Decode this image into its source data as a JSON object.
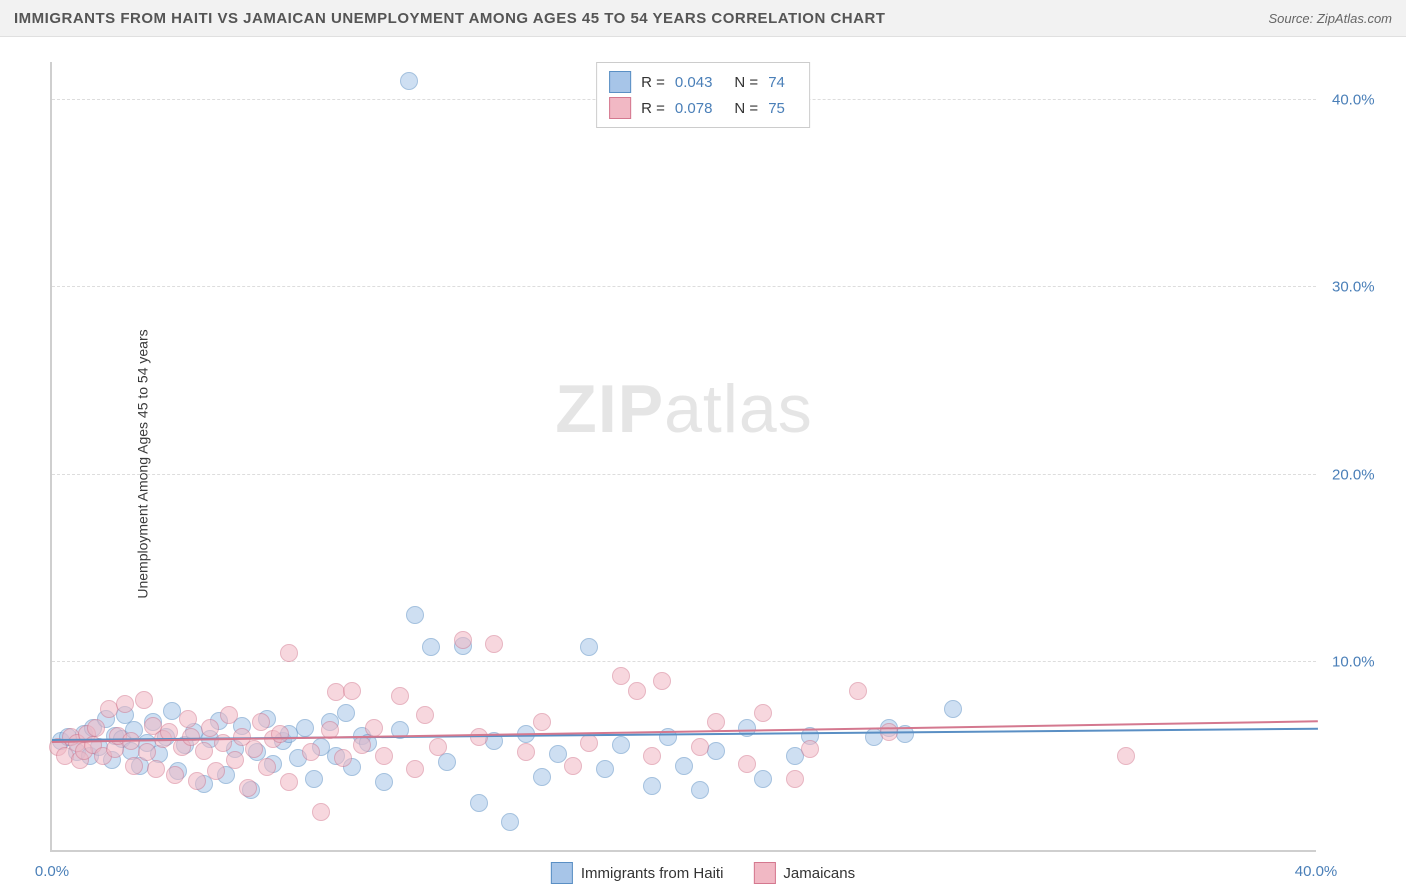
{
  "title": "IMMIGRANTS FROM HAITI VS JAMAICAN UNEMPLOYMENT AMONG AGES 45 TO 54 YEARS CORRELATION CHART",
  "source": "Source: ZipAtlas.com",
  "watermark_bold": "ZIP",
  "watermark_light": "atlas",
  "y_axis_label": "Unemployment Among Ages 45 to 54 years",
  "chart": {
    "type": "scatter",
    "xlim": [
      0,
      40
    ],
    "ylim": [
      0,
      42
    ],
    "x_ticks": [
      {
        "v": 0.0,
        "label": "0.0%"
      },
      {
        "v": 40.0,
        "label": "40.0%"
      }
    ],
    "y_ticks": [
      {
        "v": 10.0,
        "label": "10.0%"
      },
      {
        "v": 20.0,
        "label": "20.0%"
      },
      {
        "v": 30.0,
        "label": "30.0%"
      },
      {
        "v": 40.0,
        "label": "40.0%"
      }
    ],
    "grid_color": "#dddddd",
    "axis_color": "#cfcfcf",
    "background_color": "#ffffff",
    "point_radius": 9,
    "point_opacity": 0.55,
    "point_border_width": 1,
    "series": [
      {
        "name": "Immigrants from Haiti",
        "color_fill": "#a7c5e8",
        "color_border": "#5a8fc4",
        "r_value": "0.043",
        "n_value": "74",
        "trend": {
          "y_at_x0": 6.0,
          "y_at_xmax": 6.6,
          "color": "#5a8fc4"
        },
        "points": [
          [
            0.3,
            5.8
          ],
          [
            0.5,
            6.0
          ],
          [
            0.8,
            5.2
          ],
          [
            1.0,
            6.2
          ],
          [
            1.2,
            5.0
          ],
          [
            1.3,
            6.5
          ],
          [
            1.5,
            5.5
          ],
          [
            1.7,
            7.0
          ],
          [
            1.9,
            4.8
          ],
          [
            2.0,
            6.1
          ],
          [
            2.2,
            5.9
          ],
          [
            2.3,
            7.2
          ],
          [
            2.5,
            5.3
          ],
          [
            2.6,
            6.4
          ],
          [
            2.8,
            4.5
          ],
          [
            3.0,
            5.7
          ],
          [
            3.2,
            6.8
          ],
          [
            3.4,
            5.1
          ],
          [
            3.6,
            6.0
          ],
          [
            3.8,
            7.4
          ],
          [
            4.0,
            4.2
          ],
          [
            4.2,
            5.6
          ],
          [
            4.5,
            6.3
          ],
          [
            4.8,
            3.5
          ],
          [
            5.0,
            5.9
          ],
          [
            5.3,
            6.9
          ],
          [
            5.5,
            4.0
          ],
          [
            5.8,
            5.4
          ],
          [
            6.0,
            6.6
          ],
          [
            6.3,
            3.2
          ],
          [
            6.5,
            5.2
          ],
          [
            6.8,
            7.0
          ],
          [
            7.0,
            4.6
          ],
          [
            7.3,
            5.8
          ],
          [
            7.5,
            6.2
          ],
          [
            7.8,
            4.9
          ],
          [
            8.0,
            6.5
          ],
          [
            8.3,
            3.8
          ],
          [
            8.5,
            5.5
          ],
          [
            8.8,
            6.8
          ],
          [
            9.0,
            5.0
          ],
          [
            9.3,
            7.3
          ],
          [
            9.5,
            4.4
          ],
          [
            9.8,
            6.1
          ],
          [
            10.0,
            5.7
          ],
          [
            10.5,
            3.6
          ],
          [
            11.0,
            6.4
          ],
          [
            11.3,
            41.0
          ],
          [
            11.5,
            12.5
          ],
          [
            12.0,
            10.8
          ],
          [
            12.5,
            4.7
          ],
          [
            13.0,
            10.9
          ],
          [
            13.5,
            2.5
          ],
          [
            14.0,
            5.8
          ],
          [
            14.5,
            1.5
          ],
          [
            15.0,
            6.2
          ],
          [
            15.5,
            3.9
          ],
          [
            16.0,
            5.1
          ],
          [
            17.0,
            10.8
          ],
          [
            17.5,
            4.3
          ],
          [
            18.0,
            5.6
          ],
          [
            19.0,
            3.4
          ],
          [
            19.5,
            6.0
          ],
          [
            20.0,
            4.5
          ],
          [
            20.5,
            3.2
          ],
          [
            21.0,
            5.3
          ],
          [
            22.0,
            6.5
          ],
          [
            22.5,
            3.8
          ],
          [
            23.5,
            5.0
          ],
          [
            24.0,
            6.1
          ],
          [
            26.0,
            6.0
          ],
          [
            26.5,
            6.5
          ],
          [
            27.0,
            6.2
          ],
          [
            28.5,
            7.5
          ]
        ]
      },
      {
        "name": "Jamaicans",
        "color_fill": "#f1b8c4",
        "color_border": "#d4788f",
        "r_value": "0.078",
        "n_value": "75",
        "trend": {
          "y_at_x0": 5.9,
          "y_at_xmax": 7.0,
          "color": "#d4788f"
        },
        "points": [
          [
            0.2,
            5.5
          ],
          [
            0.4,
            5.0
          ],
          [
            0.6,
            6.0
          ],
          [
            0.8,
            5.7
          ],
          [
            0.9,
            4.8
          ],
          [
            1.0,
            5.3
          ],
          [
            1.1,
            6.2
          ],
          [
            1.3,
            5.6
          ],
          [
            1.4,
            6.5
          ],
          [
            1.6,
            5.0
          ],
          [
            1.8,
            7.5
          ],
          [
            2.0,
            5.4
          ],
          [
            2.1,
            6.1
          ],
          [
            2.3,
            7.8
          ],
          [
            2.5,
            5.8
          ],
          [
            2.6,
            4.5
          ],
          [
            2.9,
            8.0
          ],
          [
            3.0,
            5.2
          ],
          [
            3.2,
            6.6
          ],
          [
            3.3,
            4.3
          ],
          [
            3.5,
            5.9
          ],
          [
            3.7,
            6.3
          ],
          [
            3.9,
            4.0
          ],
          [
            4.1,
            5.5
          ],
          [
            4.3,
            7.0
          ],
          [
            4.4,
            6.0
          ],
          [
            4.6,
            3.7
          ],
          [
            4.8,
            5.3
          ],
          [
            5.0,
            6.5
          ],
          [
            5.2,
            4.2
          ],
          [
            5.4,
            5.7
          ],
          [
            5.6,
            7.2
          ],
          [
            5.8,
            4.8
          ],
          [
            6.0,
            6.0
          ],
          [
            6.2,
            3.3
          ],
          [
            6.4,
            5.4
          ],
          [
            6.6,
            6.8
          ],
          [
            6.8,
            4.4
          ],
          [
            7.0,
            5.9
          ],
          [
            7.2,
            6.2
          ],
          [
            7.5,
            10.5
          ],
          [
            7.5,
            3.6
          ],
          [
            8.2,
            5.2
          ],
          [
            8.5,
            2.0
          ],
          [
            8.8,
            6.4
          ],
          [
            9.0,
            8.4
          ],
          [
            9.2,
            4.9
          ],
          [
            9.5,
            8.5
          ],
          [
            9.8,
            5.6
          ],
          [
            10.2,
            6.5
          ],
          [
            10.5,
            5.0
          ],
          [
            11.0,
            8.2
          ],
          [
            11.5,
            4.3
          ],
          [
            11.8,
            7.2
          ],
          [
            12.2,
            5.5
          ],
          [
            13.0,
            11.2
          ],
          [
            13.5,
            6.0
          ],
          [
            14.0,
            11.0
          ],
          [
            15.0,
            5.2
          ],
          [
            15.5,
            6.8
          ],
          [
            16.5,
            4.5
          ],
          [
            17.0,
            5.7
          ],
          [
            18.0,
            9.3
          ],
          [
            18.5,
            8.5
          ],
          [
            19.0,
            5.0
          ],
          [
            19.3,
            9.0
          ],
          [
            20.5,
            5.5
          ],
          [
            21.0,
            6.8
          ],
          [
            22.0,
            4.6
          ],
          [
            22.5,
            7.3
          ],
          [
            23.5,
            3.8
          ],
          [
            24.0,
            5.4
          ],
          [
            25.5,
            8.5
          ],
          [
            26.5,
            6.3
          ],
          [
            34.0,
            5.0
          ]
        ]
      }
    ]
  },
  "legend_top": {
    "r_label": "R =",
    "n_label": "N ="
  }
}
